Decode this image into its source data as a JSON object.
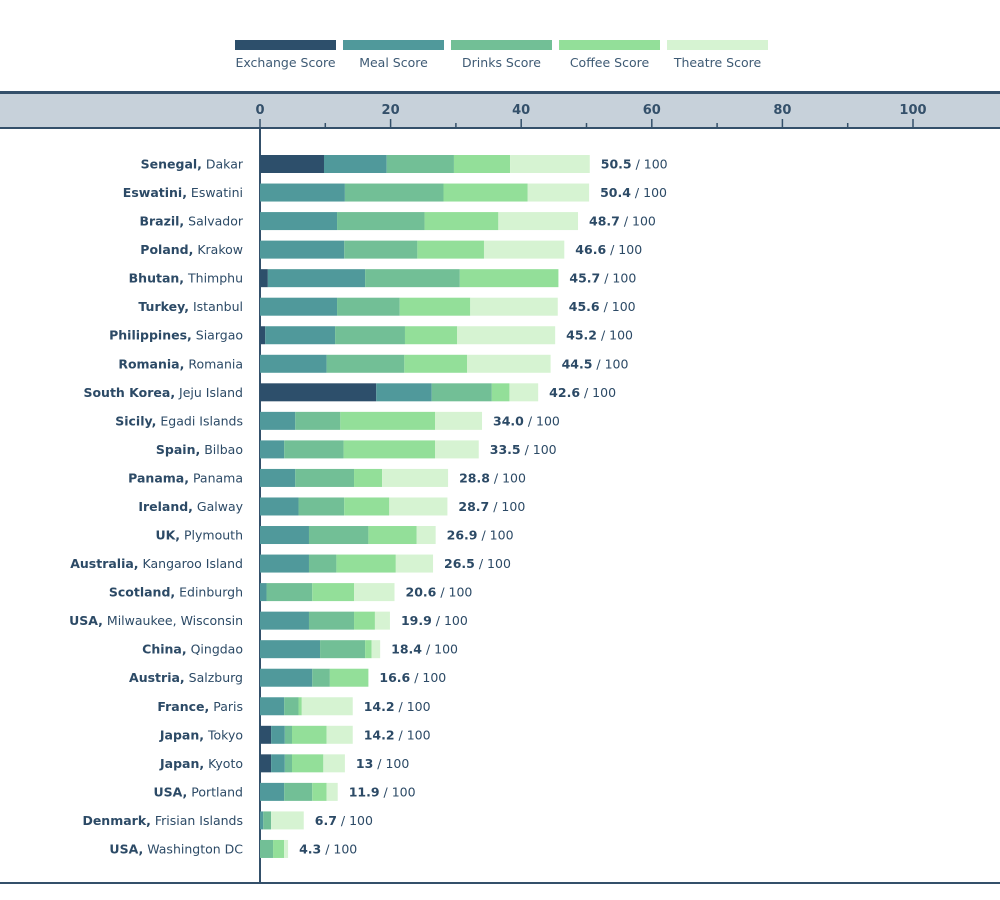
{
  "chart_data": {
    "type": "bar",
    "orientation": "horizontal",
    "stacked": true,
    "title": "",
    "xlabel": "",
    "ylabel": "",
    "xlim": [
      0,
      100
    ],
    "x_ticks": [
      0,
      20,
      40,
      60,
      80,
      100
    ],
    "minor_tick_step": 10,
    "total_suffix": " / 100",
    "legend_position": "top-center",
    "series": [
      {
        "name": "Exchange Score",
        "color": "#2d4f6b"
      },
      {
        "name": "Meal Score",
        "color": "#50999b"
      },
      {
        "name": "Drinks Score",
        "color": "#72bf96"
      },
      {
        "name": "Coffee Score",
        "color": "#93df99"
      },
      {
        "name": "Theatre Score",
        "color": "#d6f3d2"
      }
    ],
    "rows": [
      {
        "country": "Senegal,",
        "city": "Dakar",
        "total": "50.5",
        "values": [
          9.8,
          9.6,
          10.3,
          8.6,
          12.2
        ]
      },
      {
        "country": "Eswatini,",
        "city": "Eswatini",
        "total": "50.4",
        "values": [
          0,
          13.0,
          15.1,
          12.9,
          9.4
        ]
      },
      {
        "country": "Brazil,",
        "city": "Salvador",
        "total": "48.7",
        "values": [
          0,
          11.8,
          13.4,
          11.3,
          12.2
        ]
      },
      {
        "country": "Poland,",
        "city": "Krakow",
        "total": "46.6",
        "values": [
          0,
          12.9,
          11.2,
          10.2,
          12.3
        ]
      },
      {
        "country": "Bhutan,",
        "city": "Thimphu",
        "total": "45.7",
        "values": [
          1.2,
          14.9,
          14.5,
          15.1,
          0
        ]
      },
      {
        "country": "Turkey,",
        "city": "Istanbul",
        "total": "45.6",
        "values": [
          0,
          11.8,
          9.6,
          10.8,
          13.4
        ]
      },
      {
        "country": "Philippines,",
        "city": "Siargao",
        "total": "45.2",
        "values": [
          0.8,
          10.7,
          10.7,
          8.0,
          15.0
        ]
      },
      {
        "country": "Romania,",
        "city": "Romania",
        "total": "44.5",
        "values": [
          0,
          10.2,
          11.9,
          9.6,
          12.8
        ]
      },
      {
        "country": "South Korea,",
        "city": "Jeju Island",
        "total": "42.6",
        "values": [
          17.8,
          8.5,
          9.2,
          2.7,
          4.4
        ]
      },
      {
        "country": "Sicily,",
        "city": "Egadi Islands",
        "total": "34.0",
        "values": [
          0,
          5.4,
          6.9,
          14.5,
          7.2
        ]
      },
      {
        "country": "Spain,",
        "city": "Bilbao",
        "total": "33.5",
        "values": [
          0,
          3.7,
          9.1,
          14.0,
          6.7
        ]
      },
      {
        "country": "Panama,",
        "city": "Panama",
        "total": "28.8",
        "values": [
          0,
          5.4,
          9.0,
          4.3,
          10.1
        ]
      },
      {
        "country": "Ireland,",
        "city": "Galway",
        "total": "28.7",
        "values": [
          0,
          5.9,
          7.0,
          6.9,
          8.9
        ]
      },
      {
        "country": "UK,",
        "city": "Plymouth",
        "total": "26.9",
        "values": [
          0,
          7.5,
          9.1,
          7.4,
          2.9
        ]
      },
      {
        "country": "Australia,",
        "city": "Kangaroo Island",
        "total": "26.5",
        "values": [
          0,
          7.5,
          4.2,
          9.1,
          5.7
        ]
      },
      {
        "country": "Scotland,",
        "city": "Edinburgh",
        "total": "20.6",
        "values": [
          0,
          1.0,
          7.0,
          6.4,
          6.2
        ]
      },
      {
        "country": "USA,",
        "city": "Milwaukee, Wisconsin",
        "total": "19.9",
        "values": [
          0,
          7.5,
          6.9,
          3.2,
          2.3
        ]
      },
      {
        "country": "China,",
        "city": "Qingdao",
        "total": "18.4",
        "values": [
          0,
          9.2,
          6.9,
          1.0,
          1.3
        ]
      },
      {
        "country": "Austria,",
        "city": "Salzburg",
        "total": "16.6",
        "values": [
          0,
          8.0,
          2.7,
          5.9,
          0
        ]
      },
      {
        "country": "France,",
        "city": "Paris",
        "total": "14.2",
        "values": [
          0,
          3.7,
          2.2,
          0.5,
          7.8
        ]
      },
      {
        "country": "Japan,",
        "city": "Tokyo",
        "total": "14.2",
        "values": [
          1.7,
          2.1,
          1.1,
          5.3,
          4.0
        ]
      },
      {
        "country": "Japan,",
        "city": "Kyoto",
        "total": "13",
        "values": [
          1.7,
          2.1,
          1.1,
          4.8,
          3.3
        ]
      },
      {
        "country": "USA,",
        "city": "Portland",
        "total": "11.9",
        "values": [
          0,
          3.7,
          4.3,
          2.2,
          1.7
        ]
      },
      {
        "country": "Denmark,",
        "city": "Frisian Islands",
        "total": "6.7",
        "values": [
          0,
          0.5,
          1.2,
          0,
          5.0
        ]
      },
      {
        "country": "USA,",
        "city": "Washington DC",
        "total": "4.3",
        "values": [
          0,
          0,
          2.0,
          1.7,
          0.6
        ]
      }
    ]
  }
}
